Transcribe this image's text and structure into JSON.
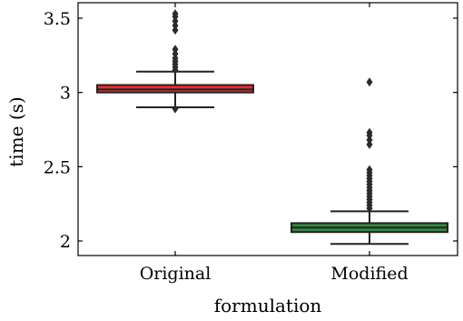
{
  "chart_data": {
    "type": "box",
    "xlabel": "formulation",
    "ylabel": "time (s)",
    "ylim": [
      1.9,
      3.6
    ],
    "yticks": [
      2,
      2.5,
      3,
      3.5
    ],
    "ytick_labels": [
      "2",
      "2.5",
      "3",
      "3.5"
    ],
    "categories": [
      "Original",
      "Modified"
    ],
    "boxes": [
      {
        "category": "Original",
        "color": "#e8302f",
        "whisker_low": 2.9,
        "q1": 3.0,
        "median": 3.02,
        "q3": 3.05,
        "whisker_high": 3.14,
        "outliers": [
          2.89,
          3.15,
          3.17,
          3.19,
          3.21,
          3.23,
          3.26,
          3.29,
          3.42,
          3.45,
          3.48,
          3.51,
          3.53
        ]
      },
      {
        "category": "Modified",
        "color": "#2e8b3c",
        "whisker_low": 1.98,
        "q1": 2.06,
        "median": 2.09,
        "q3": 2.12,
        "whisker_high": 2.2,
        "outliers": [
          2.22,
          2.24,
          2.26,
          2.28,
          2.3,
          2.32,
          2.34,
          2.36,
          2.38,
          2.4,
          2.42,
          2.44,
          2.46,
          2.48,
          2.65,
          2.68,
          2.71,
          2.73,
          3.07
        ]
      }
    ],
    "grid": false,
    "legend": "none"
  }
}
